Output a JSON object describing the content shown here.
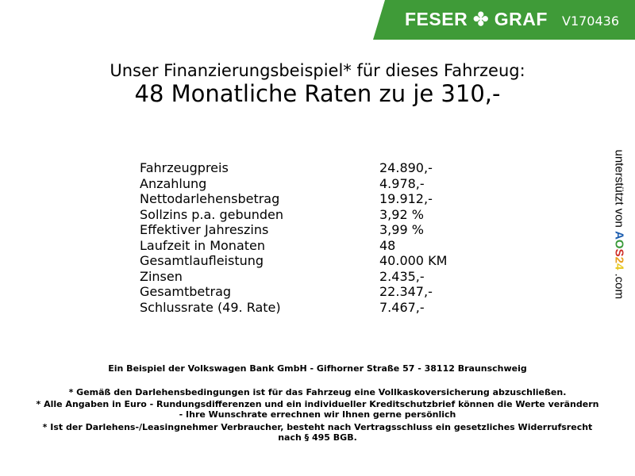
{
  "header": {
    "logo_text": "FESER ✤ GRAF",
    "vehicle_code": "V170436",
    "brand_color": "#3f9b38"
  },
  "title": {
    "line1": "Unser Finanzierungsbeispiel* für dieses Fahrzeug:",
    "line2": "48 Monatliche Raten zu je 310,-"
  },
  "rows": [
    {
      "label": "Fahrzeugpreis",
      "value": "24.890,-"
    },
    {
      "label": "Anzahlung",
      "value": "4.978,-"
    },
    {
      "label": "Nettodarlehensbetrag",
      "value": "19.912,-"
    },
    {
      "label": "Sollzins p.a. gebunden",
      "value": "3,92 %"
    },
    {
      "label": "Effektiver Jahreszins",
      "value": "3,99 %"
    },
    {
      "label": "Laufzeit in Monaten",
      "value": "48"
    },
    {
      "label": "Gesamtlaufleistung",
      "value": "40.000 KM"
    },
    {
      "label": "Zinsen",
      "value": "2.435,-"
    },
    {
      "label": "Gesamtbetrag",
      "value": "22.347,-"
    },
    {
      "label": "Schlussrate (49. Rate)",
      "value": "7.467,-"
    }
  ],
  "side": {
    "text": "unterstützt von",
    "aos": [
      "A",
      "O",
      "S",
      "2",
      "4"
    ],
    "aos_colors": [
      "#1f5fb0",
      "#3a9a3a",
      "#d0302a",
      "#e8a020",
      "#e8c820"
    ],
    "suffix": ".com"
  },
  "footer": {
    "bank": "Ein Beispiel der Volkswagen Bank GmbH - Gifhorner Straße 57 - 38112 Braunschweig",
    "note1": "* Gemäß den Darlehensbedingungen ist für das Fahrzeug eine Vollkaskoversicherung abzuschließen.",
    "note2a": "* Alle Angaben in Euro - Rundungsdifferenzen und ein individueller Kreditschutzbrief können die Werte verändern",
    "note2b": "- Ihre Wunschrate errechnen wir Ihnen gerne persönlich",
    "note3a": "* Ist der Darlehens-/Leasingnehmer Verbraucher, besteht nach Vertragsschluss ein gesetzliches Widerrufsrecht",
    "note3b": "nach § 495 BGB."
  }
}
